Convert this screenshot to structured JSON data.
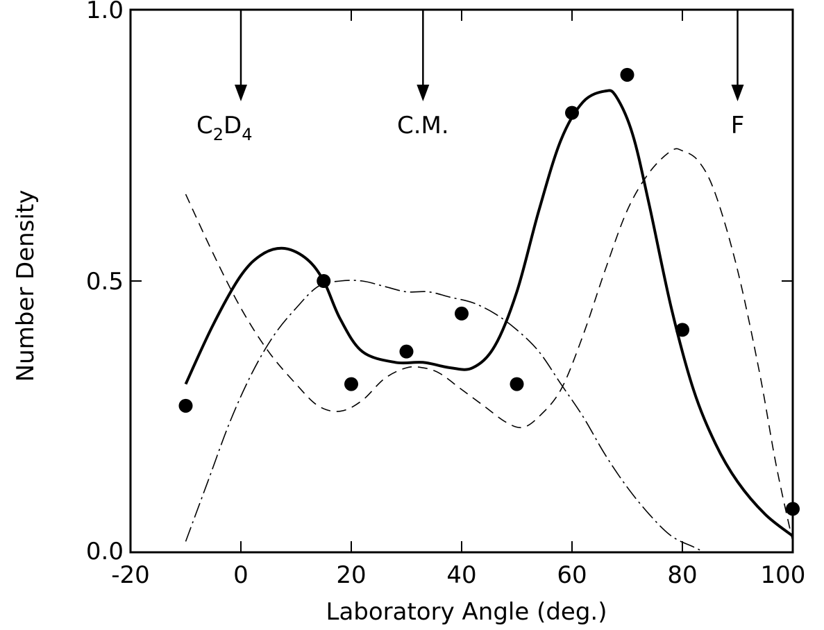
{
  "chart_data": {
    "type": "scatter",
    "title": "",
    "xlabel": "Laboratory Angle (deg.)",
    "ylabel": "Number Density",
    "xlim": [
      -20,
      100
    ],
    "ylim": [
      0.0,
      1.0
    ],
    "x_ticks": [
      -20,
      0,
      20,
      40,
      60,
      80,
      100
    ],
    "x_tick_labels": [
      "-20",
      "0",
      "20",
      "40",
      "60",
      "80",
      "100"
    ],
    "y_ticks": [
      0.0,
      0.5,
      1.0
    ],
    "y_tick_labels": [
      "0.0",
      "0.5",
      "1.0"
    ],
    "grid": false,
    "annotations": [
      {
        "text": "C",
        "sub1": "2",
        "mid": "D",
        "sub2": "4",
        "x": 0
      },
      {
        "text": "C.M.",
        "x": 33
      },
      {
        "text": "F",
        "x": 90
      }
    ],
    "series": [
      {
        "style": "markers",
        "x": [
          -10,
          15,
          20,
          30,
          40,
          50,
          60,
          70,
          80,
          100
        ],
        "y": [
          0.27,
          0.5,
          0.31,
          0.37,
          0.44,
          0.31,
          0.81,
          0.88,
          0.41,
          0.08
        ]
      },
      {
        "style": "solid-thick",
        "x": [
          -10,
          -5,
          0,
          4,
          8,
          12,
          15,
          18,
          22,
          28,
          33,
          38,
          42,
          46,
          50,
          54,
          58,
          62,
          66,
          68,
          71,
          74,
          78,
          82,
          86,
          90,
          95,
          100
        ],
        "y": [
          0.31,
          0.42,
          0.51,
          0.55,
          0.56,
          0.54,
          0.5,
          0.43,
          0.37,
          0.35,
          0.35,
          0.34,
          0.34,
          0.38,
          0.48,
          0.63,
          0.76,
          0.83,
          0.85,
          0.84,
          0.77,
          0.64,
          0.45,
          0.3,
          0.2,
          0.13,
          0.07,
          0.03
        ]
      },
      {
        "style": "dashed",
        "x": [
          -10,
          -5,
          0,
          5,
          10,
          14,
          18,
          22,
          26,
          30,
          33,
          36,
          40,
          44,
          48,
          51,
          54,
          58,
          62,
          66,
          70,
          74,
          78,
          80,
          83,
          86,
          90,
          94,
          97,
          100
        ],
        "y": [
          0.66,
          0.55,
          0.45,
          0.37,
          0.31,
          0.27,
          0.26,
          0.28,
          0.32,
          0.34,
          0.34,
          0.33,
          0.3,
          0.27,
          0.24,
          0.23,
          0.25,
          0.3,
          0.4,
          0.52,
          0.63,
          0.7,
          0.74,
          0.74,
          0.72,
          0.66,
          0.52,
          0.33,
          0.16,
          0.02
        ]
      },
      {
        "style": "dash-dot",
        "x": [
          -10,
          -6,
          -2,
          2,
          6,
          10,
          14,
          18,
          22,
          26,
          30,
          34,
          38,
          42,
          46,
          50,
          54,
          58,
          62,
          66,
          70,
          74,
          78,
          82,
          84
        ],
        "y": [
          0.02,
          0.13,
          0.24,
          0.33,
          0.4,
          0.45,
          0.49,
          0.5,
          0.5,
          0.49,
          0.48,
          0.48,
          0.47,
          0.46,
          0.44,
          0.41,
          0.37,
          0.31,
          0.25,
          0.18,
          0.12,
          0.07,
          0.03,
          0.01,
          0.0
        ]
      }
    ]
  }
}
